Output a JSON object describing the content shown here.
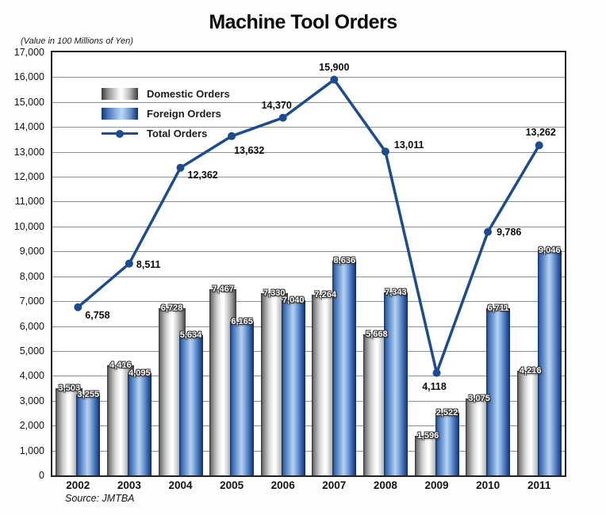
{
  "title": "Machine Tool Orders",
  "subtitle": "(Value in 100 Millions of Yen)",
  "source": "Source: JMTBA",
  "legend": {
    "domestic": "Domestic Orders",
    "foreign": "Foreign Orders",
    "total": "Total Orders"
  },
  "colors": {
    "line": "#1c4b90",
    "grid": "#8c9196",
    "domestic_bar_dark": "#3a3a3a",
    "foreign_bar_dark": "#12356f"
  },
  "chart_data": {
    "type": "bar",
    "title": "Machine Tool Orders",
    "categories": [
      "2002",
      "2003",
      "2004",
      "2005",
      "2006",
      "2007",
      "2008",
      "2009",
      "2010",
      "2011"
    ],
    "series": [
      {
        "name": "Domestic Orders",
        "type": "bar",
        "color_hint": "gray-gradient",
        "values": [
          3503,
          4416,
          6728,
          7467,
          7330,
          7264,
          5668,
          1596,
          3075,
          4216
        ]
      },
      {
        "name": "Foreign Orders",
        "type": "bar",
        "color_hint": "blue-gradient",
        "values": [
          3255,
          4095,
          5634,
          6165,
          7040,
          8636,
          7343,
          2522,
          6711,
          9046
        ]
      },
      {
        "name": "Total Orders",
        "type": "line",
        "color_hint": "#1c4b90",
        "values": [
          6758,
          8511,
          12362,
          13632,
          14370,
          15900,
          13011,
          4118,
          9786,
          13262
        ]
      }
    ],
    "xlabel": "",
    "ylabel": "(Value in 100 Millions of Yen)",
    "ylim": [
      0,
      17000
    ],
    "ytick_step": 1000,
    "grid": true,
    "data_labels": true,
    "legend_position": "top-left-inside"
  }
}
